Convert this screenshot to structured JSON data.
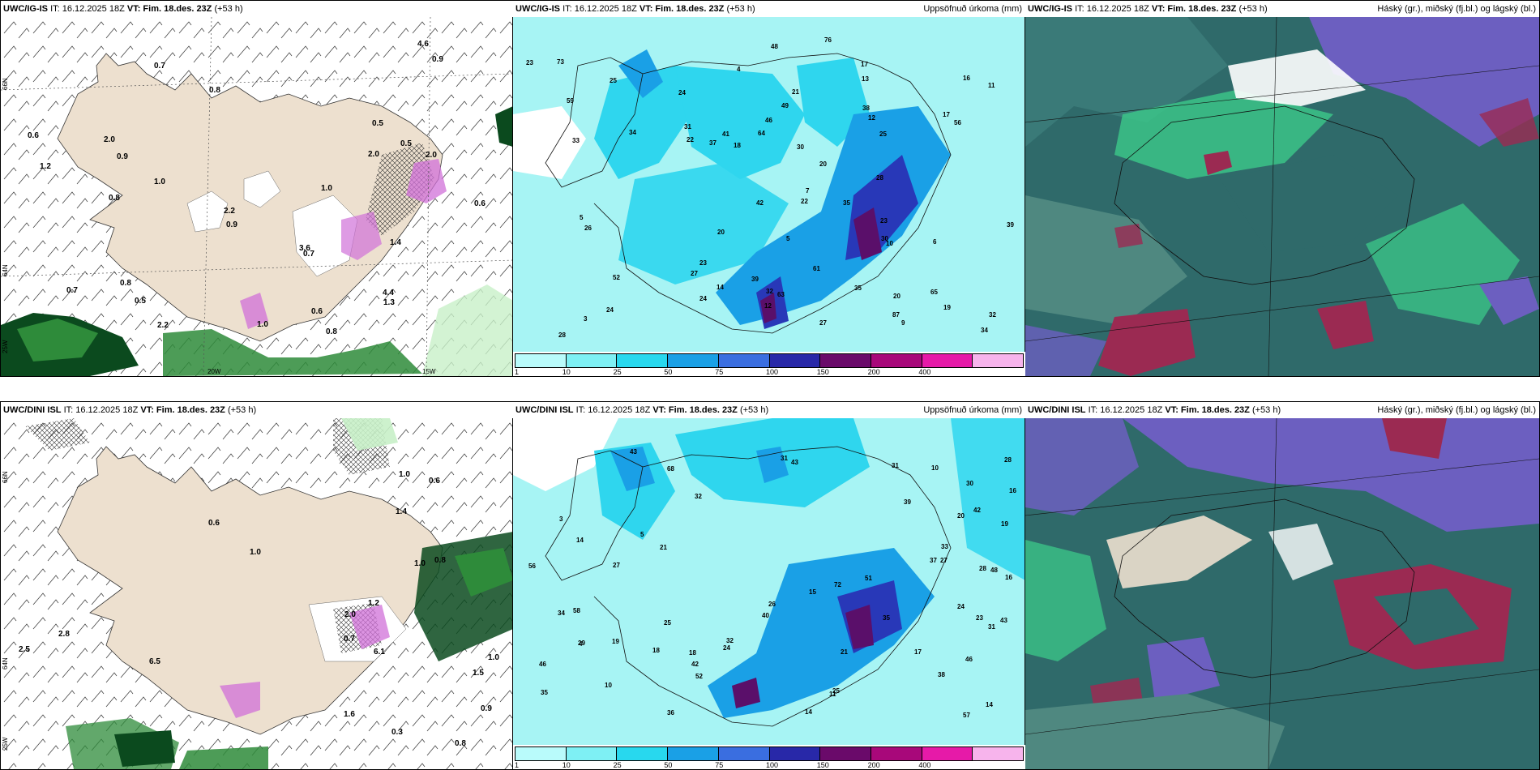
{
  "panels": {
    "top_left": {
      "title_model": "UWC/IG-IS",
      "title_it": "IT: 16.12.2025 18Z",
      "title_vt": "VT: Fim. 18.des. 23Z",
      "title_lead": "(+53 h)",
      "lat_labels": [
        "66N",
        "64N",
        "25W"
      ],
      "lon_labels": [
        "20W",
        "15W"
      ],
      "values": [
        "0.8",
        "0.7",
        "0.8",
        "2.0",
        "0.5",
        "0.6",
        "0.6",
        "1.0",
        "0.9",
        "0.5",
        "0.7",
        "0.6",
        "2.2",
        "3.6",
        "2.0",
        "4.6",
        "1.2",
        "0.9",
        "1.4",
        "2.0",
        "4.4",
        "0.7",
        "2.2",
        "1.3",
        "1.0",
        "0.5",
        "0.8",
        "0.9",
        "1.0",
        "0.8"
      ]
    },
    "top_mid": {
      "title_model": "UWC/IG-IS",
      "title_it": "IT: 16.12.2025 18Z",
      "title_vt": "VT: Fim. 18.des. 23Z",
      "title_lead": "(+53 h)",
      "title_right": "Uppsöfnuð úrkoma (mm)",
      "legend_ticks": [
        "1",
        "10",
        "25",
        "50",
        "75",
        "100",
        "150",
        "200",
        "400"
      ],
      "values": [
        "3",
        "6",
        "7",
        "5",
        "4",
        "76",
        "65",
        "17",
        "20",
        "27",
        "34",
        "22",
        "14",
        "48",
        "35",
        "31",
        "30",
        "26",
        "42",
        "11",
        "23",
        "24",
        "12",
        "35",
        "10",
        "13",
        "41",
        "49",
        "56",
        "61",
        "19",
        "20",
        "21",
        "28",
        "22",
        "27",
        "32",
        "25",
        "33",
        "39",
        "34",
        "23",
        "24",
        "24",
        "28",
        "37",
        "46",
        "63",
        "39",
        "32",
        "59",
        "64",
        "73",
        "87",
        "52",
        "25",
        "17",
        "18",
        "20",
        "23",
        "30",
        "38",
        "12",
        "16",
        "9",
        "5"
      ]
    },
    "top_right": {
      "title_model": "UWC/IG-IS",
      "title_it": "IT: 16.12.2025 18Z",
      "title_vt": "VT: Fim. 18.des. 23Z",
      "title_lead": "(+53 h)",
      "title_right": "Háský (gr.), miðský (fj.bl.) og lágský (bl.)"
    },
    "bot_left": {
      "title_model": "UWC/DINI ISL",
      "title_it": "IT: 16.12.2025 18Z",
      "title_vt": "VT: Fim. 18.des. 23Z",
      "title_lead": "(+53 h)",
      "lat_labels": [
        "66N",
        "64N",
        "25W"
      ],
      "values": [
        "0.7",
        "1.0",
        "1.0",
        "1.5",
        "1.6",
        "1.4",
        "0.8",
        "1.0",
        "0.9",
        "0.3",
        "1.2",
        "2.0",
        "2.5",
        "6.1",
        "6.5",
        "0.8",
        "0.6",
        "2.8",
        "1.0",
        "0.6"
      ]
    },
    "bot_mid": {
      "title_model": "UWC/DINI ISL",
      "title_it": "IT: 16.12.2025 18Z",
      "title_vt": "VT: Fim. 18.des. 23Z",
      "title_lead": "(+53 h)",
      "title_right": "Uppsöfnuð úrkoma (mm)",
      "legend_ticks": [
        "1",
        "10",
        "25",
        "50",
        "75",
        "100",
        "150",
        "200",
        "400"
      ],
      "values": [
        "5",
        "4",
        "3",
        "52",
        "23",
        "48",
        "57",
        "25",
        "10",
        "43",
        "31",
        "46",
        "72",
        "19",
        "24",
        "40",
        "43",
        "34",
        "29",
        "33",
        "30",
        "10",
        "14",
        "35",
        "16",
        "15",
        "20",
        "42",
        "58",
        "51",
        "31",
        "37",
        "26",
        "32",
        "14",
        "11",
        "21",
        "18",
        "24",
        "28",
        "25",
        "27",
        "31",
        "43",
        "21",
        "68",
        "42",
        "35",
        "28",
        "32",
        "39",
        "56",
        "46",
        "38",
        "27",
        "18",
        "14",
        "17",
        "16",
        "36",
        "19"
      ]
    },
    "bot_right": {
      "title_model": "UWC/DINI ISL",
      "title_it": "IT: 16.12.2025 18Z",
      "title_vt": "VT: Fim. 18.des. 23Z",
      "title_lead": "(+53 h)",
      "title_right": "Háský (gr.), miðský (fj.bl.) og lágský (bl.)"
    }
  },
  "colors": {
    "land": "#ede0cf",
    "precip_light": "#c8f0c8",
    "precip_green": "#2e8b3a",
    "precip_dark": "#0b4a1e",
    "precip_pink": "#d070d8",
    "accum_base": "#a7f4f4",
    "accum_mid": "#2fd6ee",
    "accum_blue": "#1aa0e6",
    "accum_dark": "#2838b8",
    "accum_purple": "#5a0f6a",
    "cloud_high": "#3cc98a",
    "cloud_mid": "#2f6a6a",
    "cloud_low": "#6c5fc0",
    "cloud_red": "#9b2a52",
    "legend_colors": [
      "#b9fbfb",
      "#7ef0f4",
      "#28d8ee",
      "#1aa0e6",
      "#3a6ee0",
      "#2828a8",
      "#6a0a6a",
      "#a8087a",
      "#e61aa8",
      "#f7b4ec"
    ]
  }
}
